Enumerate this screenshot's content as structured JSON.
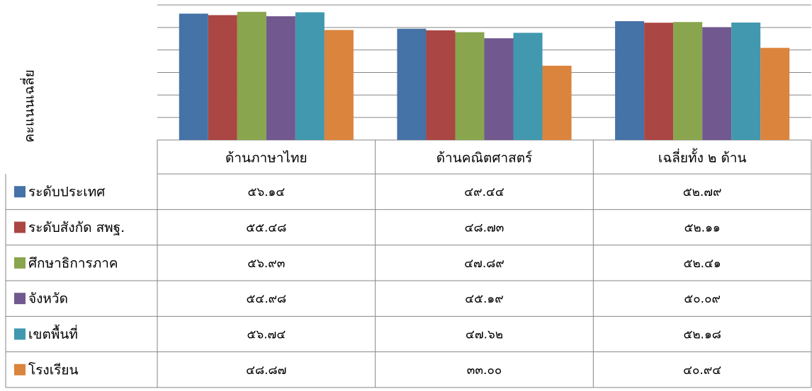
{
  "chart_data": {
    "type": "bar",
    "y_label": "คะแนนเฉลี่ย",
    "categories": [
      "ด้านภาษาไทย",
      "ด้านคณิตศาสตร์",
      "เฉลี่ยทั้ง ๒ ด้าน"
    ],
    "series": [
      {
        "name": "ระดับประเทศ",
        "color": "#4572a7",
        "values": [
          56.14,
          49.44,
          52.79
        ],
        "value_labels": [
          "๕๖.๑๔",
          "๔๙.๔๔",
          "๕๒.๗๙"
        ]
      },
      {
        "name": "ระดับสังกัด สพฐ.",
        "color": "#aa4643",
        "values": [
          55.48,
          48.73,
          52.11
        ],
        "value_labels": [
          "๕๕.๔๘",
          "๔๘.๗๓",
          "๕๒.๑๑"
        ]
      },
      {
        "name": "ศึกษาธิการภาค",
        "color": "#89a54e",
        "values": [
          56.93,
          47.89,
          52.41
        ],
        "value_labels": [
          "๕๖.๙๓",
          "๔๗.๘๙",
          "๕๒.๔๑"
        ]
      },
      {
        "name": "จังหวัด",
        "color": "#71588f",
        "values": [
          54.98,
          45.19,
          50.09
        ],
        "value_labels": [
          "๕๔.๙๘",
          "๔๕.๑๙",
          "๕๐.๐๙"
        ]
      },
      {
        "name": "เขตพื้นที่",
        "color": "#4198af",
        "values": [
          56.74,
          47.62,
          52.18
        ],
        "value_labels": [
          "๕๖.๗๔",
          "๔๗.๖๒",
          "๕๒.๑๘"
        ]
      },
      {
        "name": "โรงเรียน",
        "color": "#db843d",
        "values": [
          48.87,
          33.0,
          40.94
        ],
        "value_labels": [
          "๔๘.๘๗",
          "๓๓.๐๐",
          "๔๐.๙๔"
        ]
      }
    ],
    "ylim": [
      0,
      60
    ],
    "yticks": [
      0,
      10,
      20,
      30,
      40,
      50,
      60
    ],
    "grid": true
  }
}
